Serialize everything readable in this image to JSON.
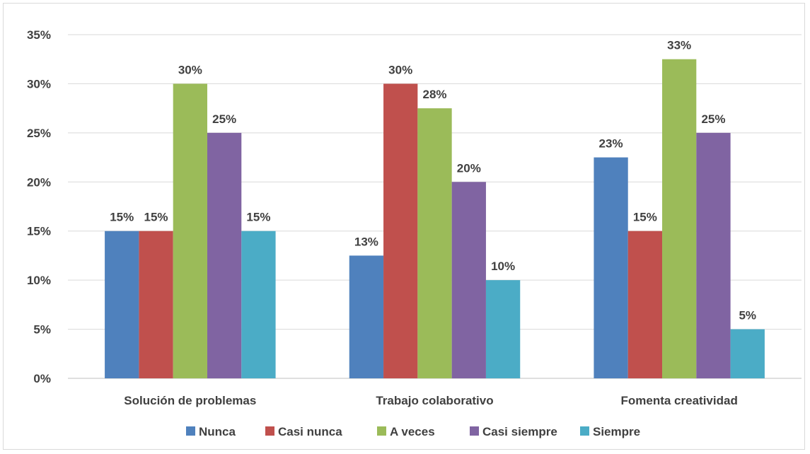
{
  "chart_data": {
    "type": "bar",
    "categories": [
      "Solución de problemas",
      "Trabajo colaborativo",
      "Fomenta creatividad"
    ],
    "series": [
      {
        "name": "Nunca",
        "values": [
          15,
          12.5,
          22.5
        ],
        "labels": [
          "15%",
          "13%",
          "23%"
        ],
        "color": "#4f81bd"
      },
      {
        "name": "Casi nunca",
        "values": [
          15,
          30,
          15
        ],
        "labels": [
          "15%",
          "30%",
          "15%"
        ],
        "color": "#c0504d"
      },
      {
        "name": "A veces",
        "values": [
          30,
          27.5,
          32.5
        ],
        "labels": [
          "30%",
          "28%",
          "33%"
        ],
        "color": "#9bbb59"
      },
      {
        "name": "Casi siempre",
        "values": [
          25,
          20,
          25
        ],
        "labels": [
          "25%",
          "20%",
          "25%"
        ],
        "color": "#8064a2"
      },
      {
        "name": "Siempre",
        "values": [
          15,
          10,
          5
        ],
        "labels": [
          "15%",
          "10%",
          "5%"
        ],
        "color": "#4bacc6"
      }
    ],
    "ylim": [
      0,
      35
    ],
    "y_ticks": [
      "0%",
      "5%",
      "10%",
      "15%",
      "20%",
      "25%",
      "30%",
      "35%"
    ],
    "y_tick_values": [
      0,
      5,
      10,
      15,
      20,
      25,
      30,
      35
    ],
    "grid": true,
    "legend_position": "bottom",
    "title": "",
    "xlabel": "",
    "ylabel": ""
  }
}
